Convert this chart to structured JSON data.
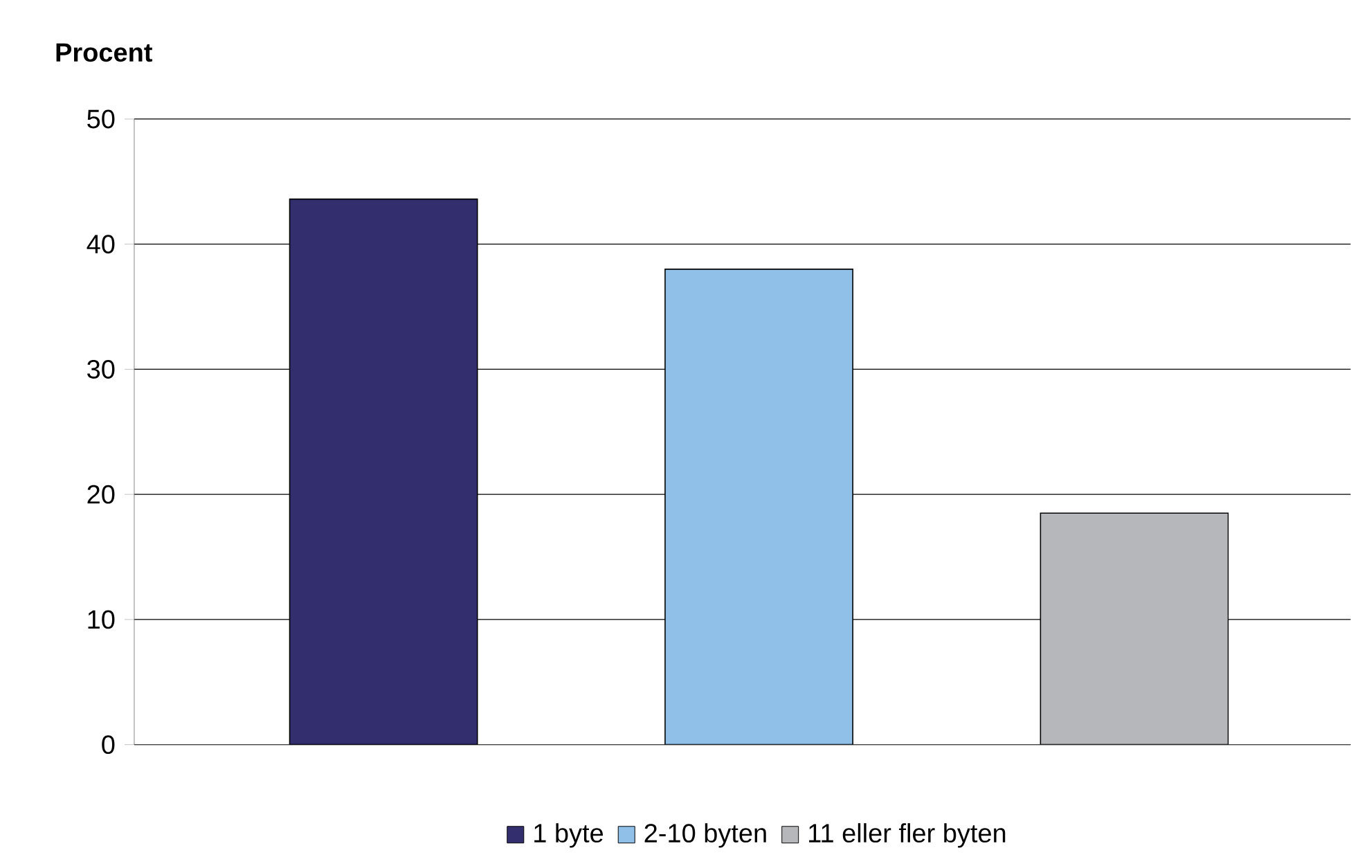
{
  "chart_data": {
    "type": "bar",
    "ylabel": "Procent",
    "categories": [
      null,
      null,
      null
    ],
    "series": [
      {
        "name": "1 byte",
        "color": "#332e6d",
        "values": [
          43.6,
          null,
          null
        ]
      },
      {
        "name": "2-10 byten",
        "color": "#90c0e8",
        "values": [
          null,
          38.0,
          null
        ]
      },
      {
        "name": "11 eller fler byten",
        "color": "#b6b7ba",
        "values": [
          null,
          null,
          18.5
        ]
      }
    ],
    "ylim": [
      0,
      50
    ],
    "yticks": [
      0,
      10,
      20,
      30,
      40,
      50
    ],
    "grid": "y",
    "legend": "bottom"
  }
}
